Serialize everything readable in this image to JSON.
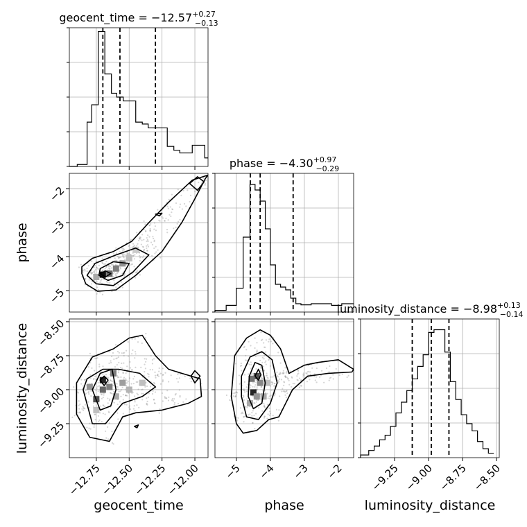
{
  "chart_data": {
    "type": "corner",
    "parameters": [
      "geocent_time",
      "phase",
      "luminosity_distance"
    ],
    "titles": [
      {
        "param": "geocent_time",
        "prefix": "geocent_time = ",
        "median": "−12.57",
        "plus": "+0.27",
        "minus": "−0.13"
      },
      {
        "param": "phase",
        "prefix": "phase = ",
        "median": "−4.30",
        "plus": "+0.97",
        "minus": "−0.29"
      },
      {
        "param": "luminosity_distance",
        "prefix": "luminosity_distance = ",
        "median": "−8.98",
        "plus": "+0.13",
        "minus": "−0.14"
      }
    ],
    "axis_labels": {
      "x": [
        "geocent_time",
        "phase",
        "luminosity_distance"
      ],
      "y": [
        "phase",
        "luminosity_distance"
      ]
    },
    "ranges": {
      "geocent_time": [
        -12.955,
        -11.9
      ],
      "phase": [
        -5.63,
        -1.55
      ],
      "luminosity_distance": [
        -9.5,
        -8.48
      ]
    },
    "ticks": {
      "geocent_time": {
        "values": [
          -12.75,
          -12.5,
          -12.25,
          -12.0
        ],
        "labels": [
          "−12.75",
          "−12.50",
          "−12.25",
          "−12.00"
        ]
      },
      "phase": {
        "values": [
          -5,
          -4,
          -3,
          -2
        ],
        "labels": [
          "−5",
          "−4",
          "−3",
          "−2"
        ]
      },
      "luminosity_distance": {
        "values": [
          -9.25,
          -9.0,
          -8.75,
          -8.5
        ],
        "labels": [
          "−9.25",
          "−9.00",
          "−8.75",
          "−8.50"
        ]
      }
    },
    "quantile_lines": {
      "geocent_time": [
        -12.7,
        -12.57,
        -12.3
      ],
      "phase": [
        -4.59,
        -4.3,
        -3.33
      ],
      "luminosity_distance": [
        -9.12,
        -8.98,
        -8.85
      ]
    },
    "histograms": {
      "geocent_time": {
        "bin_edges": [
          -12.955,
          -12.895,
          -12.82,
          -12.785,
          -12.735,
          -12.685,
          -12.635,
          -12.595,
          -12.545,
          -12.5,
          -12.45,
          -12.4,
          -12.355,
          -12.305,
          -12.255,
          -12.21,
          -12.16,
          -12.115,
          -12.065,
          -12.02,
          -11.97,
          -11.925,
          -11.9
        ],
        "counts": [
          0,
          0.5,
          11.5,
          16,
          35,
          24,
          19,
          18,
          17,
          17,
          11.5,
          11,
          10,
          10,
          10,
          5.2,
          4.2,
          3.5,
          3.5,
          5.5,
          5.5,
          2.2
        ],
        "ylim": [
          0,
          36
        ]
      },
      "phase": {
        "bin_edges": [
          -5.63,
          -5.3,
          -5.0,
          -4.8,
          -4.6,
          -4.45,
          -4.3,
          -4.15,
          -4.0,
          -3.85,
          -3.7,
          -3.55,
          -3.4,
          -3.25,
          -3.1,
          -2.8,
          -2.5,
          -2.2,
          -1.9,
          -1.55
        ],
        "counts": [
          0.3,
          1.2,
          4.3,
          13.5,
          23,
          22,
          20,
          15,
          8.5,
          5,
          4.5,
          4,
          2.5,
          1.5,
          1.3,
          1.5,
          1.5,
          1.2,
          1.5
        ],
        "ylim": [
          0,
          25
        ]
      },
      "luminosity_distance": {
        "bin_edges": [
          -9.5,
          -9.44,
          -9.4,
          -9.36,
          -9.32,
          -9.28,
          -9.24,
          -9.2,
          -9.16,
          -9.12,
          -9.08,
          -9.04,
          -9.0,
          -8.96,
          -8.92,
          -8.88,
          -8.84,
          -8.8,
          -8.76,
          -8.72,
          -8.68,
          -8.64,
          -8.6,
          -8.56,
          -8.52
        ],
        "counts": [
          0.3,
          0.8,
          1.3,
          2.0,
          2.5,
          3.5,
          5.0,
          6.2,
          7.5,
          8.8,
          10.2,
          11.5,
          14.0,
          14.3,
          14.3,
          11.8,
          8.5,
          6.5,
          4.8,
          3.8,
          3.0,
          1.8,
          1.0,
          0.5
        ],
        "ylim": [
          0,
          15.5
        ]
      }
    },
    "pair_panels": [
      {
        "x": "geocent_time",
        "y": "phase",
        "density_cells": [
          {
            "x": -12.7,
            "y": -4.53,
            "v": 1.0
          },
          {
            "x": -12.65,
            "y": -4.5,
            "v": 0.6
          },
          {
            "x": -12.6,
            "y": -4.35,
            "v": 0.5
          },
          {
            "x": -12.55,
            "y": -4.2,
            "v": 0.4
          },
          {
            "x": -12.75,
            "y": -4.6,
            "v": 0.3
          },
          {
            "x": -12.5,
            "y": -4.05,
            "v": 0.2
          },
          {
            "x": -12.45,
            "y": -3.8,
            "v": 0.15
          }
        ],
        "contours": [
          [
            [
              -12.86,
              -4.5
            ],
            [
              -12.83,
              -4.8
            ],
            [
              -12.74,
              -5.02
            ],
            [
              -12.6,
              -4.98
            ],
            [
              -12.45,
              -4.55
            ],
            [
              -12.25,
              -3.85
            ],
            [
              -12.1,
              -3.0
            ],
            [
              -12.0,
              -2.3
            ],
            [
              -11.92,
              -1.7
            ],
            [
              -11.9,
              -1.6
            ],
            [
              -12.02,
              -1.75
            ],
            [
              -12.2,
              -2.4
            ],
            [
              -12.35,
              -3.0
            ],
            [
              -12.48,
              -3.55
            ],
            [
              -12.62,
              -3.85
            ],
            [
              -12.78,
              -4.05
            ],
            [
              -12.86,
              -4.3
            ],
            [
              -12.86,
              -4.5
            ]
          ],
          [
            [
              -12.82,
              -4.55
            ],
            [
              -12.75,
              -4.8
            ],
            [
              -12.62,
              -4.85
            ],
            [
              -12.47,
              -4.45
            ],
            [
              -12.35,
              -3.95
            ],
            [
              -12.45,
              -3.75
            ],
            [
              -12.6,
              -3.95
            ],
            [
              -12.76,
              -4.2
            ],
            [
              -12.82,
              -4.55
            ]
          ],
          [
            [
              -12.73,
              -4.55
            ],
            [
              -12.66,
              -4.7
            ],
            [
              -12.55,
              -4.55
            ],
            [
              -12.5,
              -4.2
            ],
            [
              -12.62,
              -4.15
            ],
            [
              -12.72,
              -4.35
            ],
            [
              -12.73,
              -4.55
            ]
          ],
          [
            [
              -12.72,
              -4.5
            ],
            [
              -12.68,
              -4.6
            ],
            [
              -12.64,
              -4.5
            ],
            [
              -12.68,
              -4.42
            ],
            [
              -12.72,
              -4.5
            ]
          ],
          [
            [
              -12.04,
              -1.85
            ],
            [
              -11.98,
              -2.05
            ],
            [
              -11.93,
              -1.8
            ],
            [
              -11.98,
              -1.65
            ],
            [
              -12.04,
              -1.85
            ]
          ],
          [
            [
              -12.3,
              -2.75
            ],
            [
              -12.27,
              -2.8
            ],
            [
              -12.25,
              -2.72
            ],
            [
              -12.3,
              -2.75
            ]
          ]
        ]
      },
      {
        "x": "geocent_time",
        "y": "luminosity_distance",
        "density_cells": [
          {
            "x": -12.7,
            "y": -8.93,
            "v": 0.9
          },
          {
            "x": -12.75,
            "y": -9.07,
            "v": 0.7
          },
          {
            "x": -12.7,
            "y": -9.0,
            "v": 0.6
          },
          {
            "x": -12.65,
            "y": -8.98,
            "v": 0.5
          },
          {
            "x": -12.62,
            "y": -8.88,
            "v": 0.5
          },
          {
            "x": -12.8,
            "y": -8.98,
            "v": 0.4
          },
          {
            "x": -12.55,
            "y": -8.95,
            "v": 0.35
          },
          {
            "x": -12.6,
            "y": -9.05,
            "v": 0.3
          },
          {
            "x": -12.5,
            "y": -9.0,
            "v": 0.25
          },
          {
            "x": -12.4,
            "y": -8.95,
            "v": 0.2
          },
          {
            "x": -12.75,
            "y": -9.15,
            "v": 0.2
          }
        ],
        "contours": [
          [
            [
              -12.9,
              -8.95
            ],
            [
              -12.9,
              -9.18
            ],
            [
              -12.8,
              -9.35
            ],
            [
              -12.65,
              -9.38
            ],
            [
              -12.55,
              -9.2
            ],
            [
              -12.45,
              -9.17
            ],
            [
              -12.25,
              -9.15
            ],
            [
              -12.05,
              -9.1
            ],
            [
              -11.95,
              -9.05
            ],
            [
              -11.96,
              -8.92
            ],
            [
              -12.1,
              -8.88
            ],
            [
              -12.2,
              -8.85
            ],
            [
              -12.3,
              -8.75
            ],
            [
              -12.4,
              -8.6
            ],
            [
              -12.5,
              -8.62
            ],
            [
              -12.62,
              -8.7
            ],
            [
              -12.78,
              -8.76
            ],
            [
              -12.9,
              -8.95
            ]
          ],
          [
            [
              -12.85,
              -9.0
            ],
            [
              -12.78,
              -9.25
            ],
            [
              -12.68,
              -9.25
            ],
            [
              -12.55,
              -9.1
            ],
            [
              -12.4,
              -9.05
            ],
            [
              -12.3,
              -8.98
            ],
            [
              -12.42,
              -8.88
            ],
            [
              -12.58,
              -8.85
            ],
            [
              -12.7,
              -8.85
            ],
            [
              -12.82,
              -8.92
            ],
            [
              -12.85,
              -9.0
            ]
          ],
          [
            [
              -12.78,
              -9.0
            ],
            [
              -12.72,
              -9.15
            ],
            [
              -12.64,
              -9.12
            ],
            [
              -12.6,
              -9.0
            ],
            [
              -12.63,
              -8.85
            ],
            [
              -12.72,
              -8.88
            ],
            [
              -12.78,
              -9.0
            ]
          ],
          [
            [
              -12.72,
              -8.93
            ],
            [
              -12.69,
              -8.97
            ],
            [
              -12.66,
              -8.93
            ],
            [
              -12.69,
              -8.9
            ],
            [
              -12.72,
              -8.93
            ]
          ],
          [
            [
              -12.03,
              -8.9
            ],
            [
              -12.0,
              -8.95
            ],
            [
              -11.96,
              -8.9
            ],
            [
              -12.0,
              -8.86
            ],
            [
              -12.03,
              -8.9
            ]
          ],
          [
            [
              -12.46,
              -9.27
            ],
            [
              -12.44,
              -9.28
            ],
            [
              -12.43,
              -9.26
            ],
            [
              -12.46,
              -9.27
            ]
          ]
        ]
      },
      {
        "x": "phase",
        "y": "luminosity_distance",
        "density_cells": [
          {
            "x": -4.5,
            "y": -9.02,
            "v": 0.9
          },
          {
            "x": -4.4,
            "y": -8.9,
            "v": 0.7
          },
          {
            "x": -4.55,
            "y": -8.92,
            "v": 0.55
          },
          {
            "x": -4.3,
            "y": -8.95,
            "v": 0.45
          },
          {
            "x": -4.4,
            "y": -9.05,
            "v": 0.4
          },
          {
            "x": -4.6,
            "y": -9.1,
            "v": 0.3
          },
          {
            "x": -4.2,
            "y": -9.05,
            "v": 0.3
          },
          {
            "x": -4.1,
            "y": -8.95,
            "v": 0.2
          }
        ],
        "contours": [
          [
            [
              -5.15,
              -9.05
            ],
            [
              -5.0,
              -9.25
            ],
            [
              -4.8,
              -9.32
            ],
            [
              -4.4,
              -9.3
            ],
            [
              -4.05,
              -9.22
            ],
            [
              -3.75,
              -9.2
            ],
            [
              -3.35,
              -9.0
            ],
            [
              -2.9,
              -8.9
            ],
            [
              -2.3,
              -8.88
            ],
            [
              -1.6,
              -8.87
            ],
            [
              -1.55,
              -8.85
            ],
            [
              -2.0,
              -8.78
            ],
            [
              -2.6,
              -8.8
            ],
            [
              -3.0,
              -8.82
            ],
            [
              -3.45,
              -8.88
            ],
            [
              -3.7,
              -8.7
            ],
            [
              -4.0,
              -8.6
            ],
            [
              -4.3,
              -8.56
            ],
            [
              -4.7,
              -8.62
            ],
            [
              -5.05,
              -8.75
            ],
            [
              -5.15,
              -9.05
            ]
          ],
          [
            [
              -4.85,
              -9.05
            ],
            [
              -4.7,
              -9.2
            ],
            [
              -4.35,
              -9.22
            ],
            [
              -4.0,
              -9.1
            ],
            [
              -3.8,
              -8.95
            ],
            [
              -3.95,
              -8.78
            ],
            [
              -4.25,
              -8.72
            ],
            [
              -4.6,
              -8.76
            ],
            [
              -4.85,
              -8.9
            ],
            [
              -4.85,
              -9.05
            ]
          ],
          [
            [
              -4.65,
              -9.05
            ],
            [
              -4.5,
              -9.14
            ],
            [
              -4.25,
              -9.1
            ],
            [
              -4.15,
              -8.95
            ],
            [
              -4.25,
              -8.82
            ],
            [
              -4.45,
              -8.8
            ],
            [
              -4.62,
              -8.9
            ],
            [
              -4.65,
              -9.05
            ]
          ],
          [
            [
              -4.45,
              -8.9
            ],
            [
              -4.35,
              -8.93
            ],
            [
              -4.28,
              -8.89
            ],
            [
              -4.35,
              -8.85
            ],
            [
              -4.45,
              -8.9
            ]
          ]
        ]
      }
    ]
  }
}
